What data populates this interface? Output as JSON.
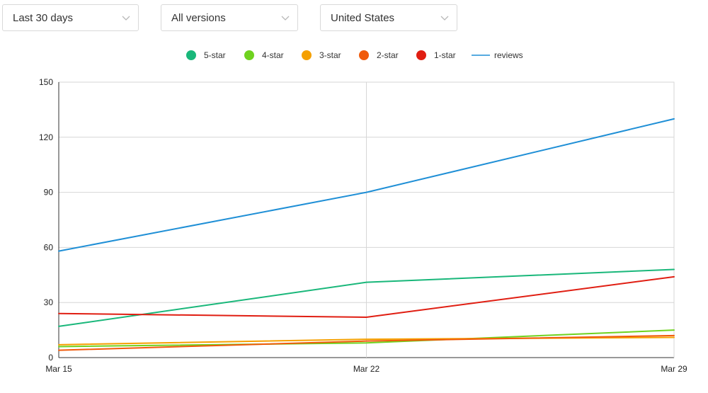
{
  "filters": {
    "range": "Last 30 days",
    "version": "All versions",
    "country": "United States"
  },
  "chart_data": {
    "type": "line",
    "x": [
      "Mar 15",
      "Mar 22",
      "Mar 29"
    ],
    "ylim": [
      0,
      150
    ],
    "yticks": [
      0,
      30,
      60,
      90,
      120,
      150
    ],
    "grid": true,
    "legend": "top-center",
    "series": [
      {
        "name": "5-star",
        "color": "#19b77a",
        "values": [
          17,
          41,
          48
        ]
      },
      {
        "name": "4-star",
        "color": "#6fd21f",
        "values": [
          6,
          8,
          15
        ]
      },
      {
        "name": "3-star",
        "color": "#f5a000",
        "values": [
          7,
          10,
          11
        ]
      },
      {
        "name": "2-star",
        "color": "#f05a0a",
        "values": [
          4,
          9,
          12
        ]
      },
      {
        "name": "1-star",
        "color": "#e01e12",
        "values": [
          24,
          22,
          44
        ]
      },
      {
        "name": "reviews",
        "color": "#1f8fd6",
        "values": [
          58,
          90,
          130
        ]
      }
    ]
  }
}
